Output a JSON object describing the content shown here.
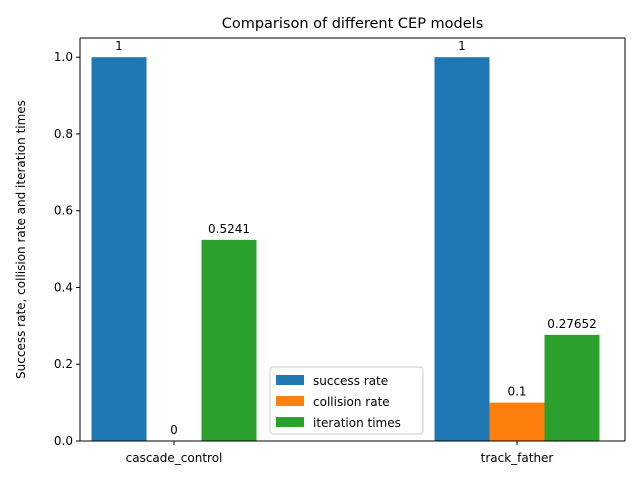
{
  "chart_data": {
    "type": "bar",
    "title": "Comparison of different CEP models",
    "xlabel": "",
    "ylabel": "Success rate, collision rate and iteration times",
    "categories": [
      "cascade_control",
      "track_father"
    ],
    "series": [
      {
        "name": "success rate",
        "color": "#1f77b4",
        "values": [
          1,
          1
        ],
        "labels": [
          "1",
          "1"
        ]
      },
      {
        "name": "collision rate",
        "color": "#ff7f0e",
        "values": [
          0,
          0.1
        ],
        "labels": [
          "0",
          "0.1"
        ]
      },
      {
        "name": "iteration times",
        "color": "#2ca02c",
        "values": [
          0.5241,
          0.27652
        ],
        "labels": [
          "0.5241",
          "0.27652"
        ]
      }
    ],
    "ylim": [
      0,
      1.05
    ],
    "yticks": [
      "0.0",
      "0.2",
      "0.4",
      "0.6",
      "0.8",
      "1.0"
    ],
    "grid": false,
    "legend_position": "lower-center"
  }
}
